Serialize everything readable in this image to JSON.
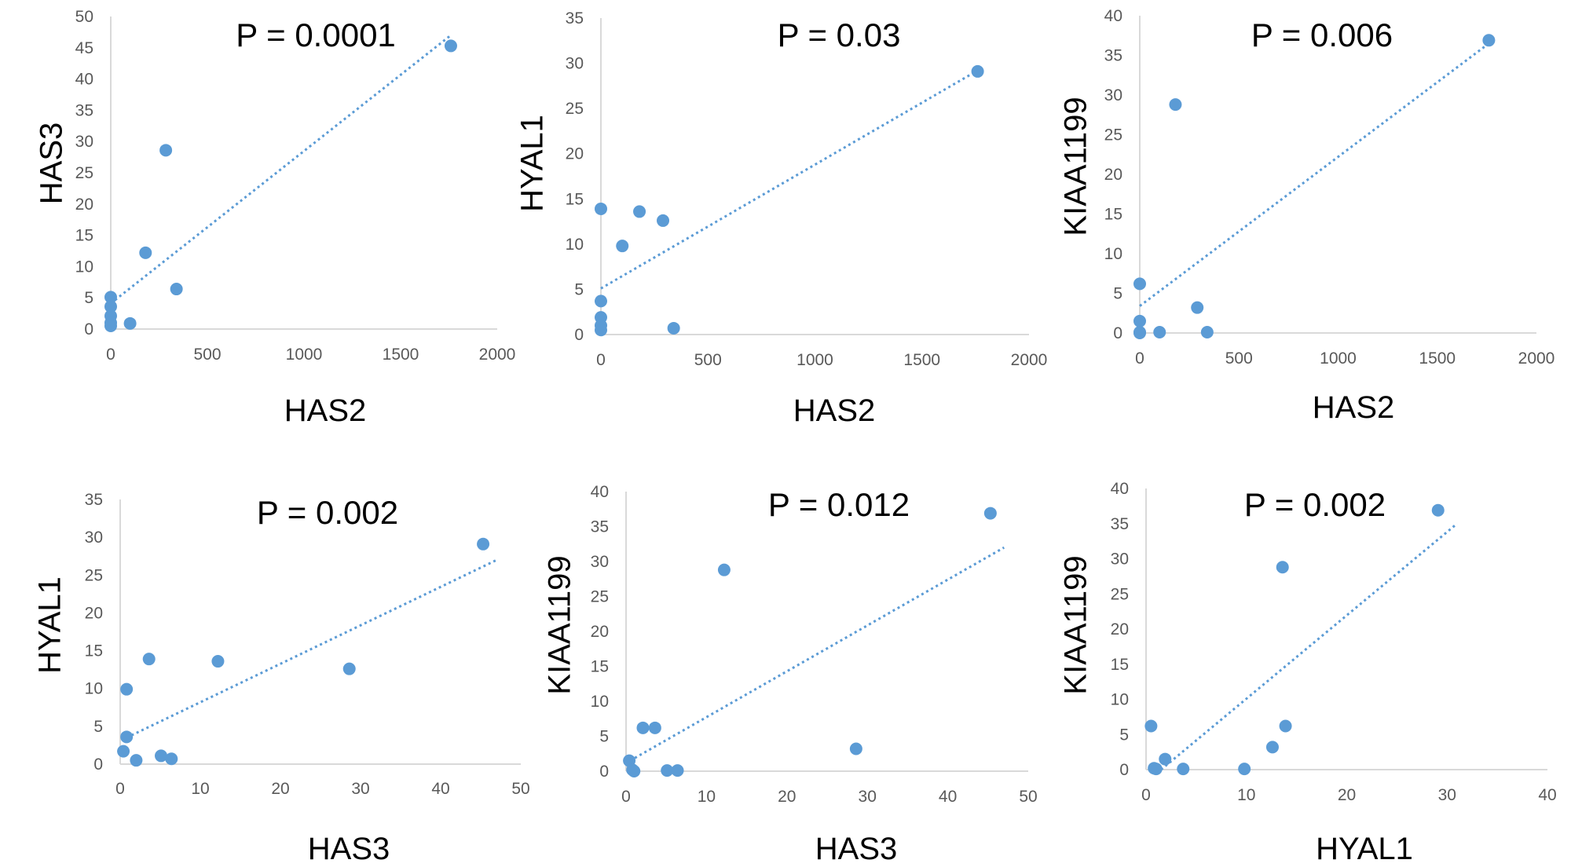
{
  "chart_data": [
    {
      "type": "scatter",
      "title": "P = 0.0001",
      "xlabel": "HAS2",
      "ylabel": "HAS3",
      "xlim": [
        0,
        2000
      ],
      "ylim": [
        0,
        50
      ],
      "xticks": [
        0,
        500,
        1000,
        1500,
        2000
      ],
      "yticks": [
        0,
        5,
        10,
        15,
        20,
        25,
        30,
        35,
        40,
        45,
        50
      ],
      "trendline": true,
      "trend_line": [
        [
          0,
          4.1
        ],
        [
          1760,
          47
        ]
      ],
      "points": [
        {
          "x": 0,
          "y": 5.1
        },
        {
          "x": 0,
          "y": 3.6
        },
        {
          "x": 0,
          "y": 2.1
        },
        {
          "x": 0,
          "y": 1.0
        },
        {
          "x": 0,
          "y": 0.5
        },
        {
          "x": 100,
          "y": 0.9
        },
        {
          "x": 180,
          "y": 12.2
        },
        {
          "x": 285,
          "y": 28.6
        },
        {
          "x": 340,
          "y": 6.4
        },
        {
          "x": 1760,
          "y": 45.3
        }
      ],
      "color": "#5b9bd5"
    },
    {
      "type": "scatter",
      "title": "P = 0.03",
      "xlabel": "HAS2",
      "ylabel": "HYAL1",
      "xlim": [
        0,
        2000
      ],
      "ylim": [
        0,
        35
      ],
      "xticks": [
        0,
        500,
        1000,
        1500,
        2000
      ],
      "yticks": [
        0,
        5,
        10,
        15,
        20,
        25,
        30,
        35
      ],
      "trendline": true,
      "trend_line": [
        [
          0,
          5.1
        ],
        [
          1760,
          29.2
        ]
      ],
      "points": [
        {
          "x": 0,
          "y": 13.9
        },
        {
          "x": 0,
          "y": 3.7
        },
        {
          "x": 0,
          "y": 1.9
        },
        {
          "x": 0,
          "y": 1.0
        },
        {
          "x": 0,
          "y": 0.5
        },
        {
          "x": 100,
          "y": 9.8
        },
        {
          "x": 180,
          "y": 13.6
        },
        {
          "x": 290,
          "y": 12.6
        },
        {
          "x": 340,
          "y": 0.7
        },
        {
          "x": 1760,
          "y": 29.1
        }
      ],
      "color": "#5b9bd5"
    },
    {
      "type": "scatter",
      "title": "P = 0.006",
      "xlabel": "HAS2",
      "ylabel": "KIAA1199",
      "xlim": [
        0,
        2000
      ],
      "ylim": [
        0,
        40
      ],
      "xticks": [
        0,
        500,
        1000,
        1500,
        2000
      ],
      "yticks": [
        0,
        5,
        10,
        15,
        20,
        25,
        30,
        35,
        40
      ],
      "trendline": true,
      "trend_line": [
        [
          0,
          3.4
        ],
        [
          1760,
          36.5
        ]
      ],
      "points": [
        {
          "x": 0,
          "y": 6.2
        },
        {
          "x": 0,
          "y": 1.5
        },
        {
          "x": 0,
          "y": 0.1
        },
        {
          "x": 0,
          "y": 0.0
        },
        {
          "x": 100,
          "y": 0.1
        },
        {
          "x": 180,
          "y": 28.8
        },
        {
          "x": 290,
          "y": 3.2
        },
        {
          "x": 340,
          "y": 0.1
        },
        {
          "x": 1760,
          "y": 36.9
        }
      ],
      "color": "#5b9bd5"
    },
    {
      "type": "scatter",
      "title": "P = 0.002",
      "xlabel": "HAS3",
      "ylabel": "HYAL1",
      "xlim": [
        0,
        50
      ],
      "ylim": [
        0,
        35
      ],
      "xticks": [
        0,
        10,
        20,
        30,
        40,
        50
      ],
      "yticks": [
        0,
        5,
        10,
        15,
        20,
        25,
        30,
        35
      ],
      "trendline": true,
      "trend_line": [
        [
          0.8,
          3.5
        ],
        [
          47,
          27
        ]
      ],
      "points": [
        {
          "x": 0.4,
          "y": 1.7
        },
        {
          "x": 0.8,
          "y": 9.9
        },
        {
          "x": 0.8,
          "y": 3.6
        },
        {
          "x": 2.0,
          "y": 0.5
        },
        {
          "x": 3.6,
          "y": 13.9
        },
        {
          "x": 5.1,
          "y": 1.1
        },
        {
          "x": 6.4,
          "y": 0.7
        },
        {
          "x": 12.2,
          "y": 13.6
        },
        {
          "x": 28.6,
          "y": 12.6
        },
        {
          "x": 45.3,
          "y": 29.1
        }
      ],
      "color": "#5b9bd5"
    },
    {
      "type": "scatter",
      "title": "P = 0.012",
      "xlabel": "HAS3",
      "ylabel": "KIAA1199",
      "xlim": [
        0,
        50
      ],
      "ylim": [
        0,
        40
      ],
      "xticks": [
        0,
        10,
        20,
        30,
        40,
        50
      ],
      "yticks": [
        0,
        5,
        10,
        15,
        20,
        25,
        30,
        35,
        40
      ],
      "trendline": true,
      "trend_line": [
        [
          0.5,
          1.5
        ],
        [
          47,
          32
        ]
      ],
      "points": [
        {
          "x": 0.4,
          "y": 1.5
        },
        {
          "x": 0.8,
          "y": 0.2
        },
        {
          "x": 1.0,
          "y": 0.0
        },
        {
          "x": 2.1,
          "y": 6.2
        },
        {
          "x": 3.6,
          "y": 6.2
        },
        {
          "x": 5.1,
          "y": 0.1
        },
        {
          "x": 6.4,
          "y": 0.1
        },
        {
          "x": 12.2,
          "y": 28.8
        },
        {
          "x": 28.6,
          "y": 3.2
        },
        {
          "x": 45.3,
          "y": 36.9
        }
      ],
      "color": "#5b9bd5"
    },
    {
      "type": "scatter",
      "title": "P = 0.002",
      "xlabel": "HYAL1",
      "ylabel": "KIAA1199",
      "xlim": [
        0,
        40
      ],
      "ylim": [
        0,
        40
      ],
      "xticks": [
        0,
        10,
        20,
        30,
        40
      ],
      "yticks": [
        0,
        5,
        10,
        15,
        20,
        25,
        30,
        35,
        40
      ],
      "trendline": true,
      "trend_line": [
        [
          1.5,
          0
        ],
        [
          31,
          35
        ]
      ],
      "points": [
        {
          "x": 0.5,
          "y": 6.2
        },
        {
          "x": 0.8,
          "y": 0.2
        },
        {
          "x": 1.0,
          "y": 0.1
        },
        {
          "x": 1.9,
          "y": 1.5
        },
        {
          "x": 3.7,
          "y": 0.1
        },
        {
          "x": 9.8,
          "y": 0.1
        },
        {
          "x": 12.6,
          "y": 3.2
        },
        {
          "x": 13.6,
          "y": 28.8
        },
        {
          "x": 13.9,
          "y": 6.2
        },
        {
          "x": 29.1,
          "y": 36.9
        }
      ],
      "color": "#5b9bd5"
    }
  ]
}
